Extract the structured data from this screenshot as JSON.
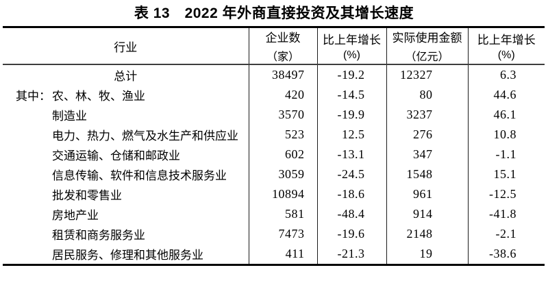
{
  "title": "表 13　2022 年外商直接投资及其增长速度",
  "table": {
    "headers": {
      "industry": "行业",
      "enterprises": {
        "line1": "企业数",
        "line2": "（家）"
      },
      "growth1": {
        "line1": "比上年增长",
        "line2": "(%)"
      },
      "amount": {
        "line1": "实际使用金额",
        "line2": "（亿元）"
      },
      "growth2": {
        "line1": "比上年增长",
        "line2": "(%)"
      }
    },
    "rows": [
      {
        "prefix": "",
        "industry": "总计",
        "enterprises": "38497",
        "growth1": "-19.2",
        "amount": "12327",
        "growth2": "6.3"
      },
      {
        "prefix": "其中：",
        "industry": "农、林、牧、渔业",
        "enterprises": "420",
        "growth1": "-14.5",
        "amount": "80",
        "growth2": "44.6"
      },
      {
        "prefix": "",
        "industry": "制造业",
        "enterprises": "3570",
        "growth1": "-19.9",
        "amount": "3237",
        "growth2": "46.1"
      },
      {
        "prefix": "",
        "industry": "电力、热力、燃气及水生产和供应业",
        "enterprises": "523",
        "growth1": "12.5",
        "amount": "276",
        "growth2": "10.8"
      },
      {
        "prefix": "",
        "industry": "交通运输、仓储和邮政业",
        "enterprises": "602",
        "growth1": "-13.1",
        "amount": "347",
        "grow2_note": "",
        "growth2": "-1.1"
      },
      {
        "prefix": "",
        "industry": "信息传输、软件和信息技术服务业",
        "enterprises": "3059",
        "growth1": "-24.5",
        "amount": "1548",
        "growth2": "15.1"
      },
      {
        "prefix": "",
        "industry": "批发和零售业",
        "enterprises": "10894",
        "growth1": "-18.6",
        "amount": "961",
        "growth2": "-12.5"
      },
      {
        "prefix": "",
        "industry": "房地产业",
        "enterprises": "581",
        "growth1": "-48.4",
        "amount": "914",
        "growth2": "-41.8"
      },
      {
        "prefix": "",
        "industry": "租赁和商务服务业",
        "enterprises": "7473",
        "growth1": "-19.6",
        "amount": "2148",
        "growth2": "-2.1"
      },
      {
        "prefix": "",
        "industry": "居民服务、修理和其他服务业",
        "enterprises": "411",
        "growth1": "-21.3",
        "amount": "19",
        "growth2": "-38.6"
      }
    ]
  }
}
